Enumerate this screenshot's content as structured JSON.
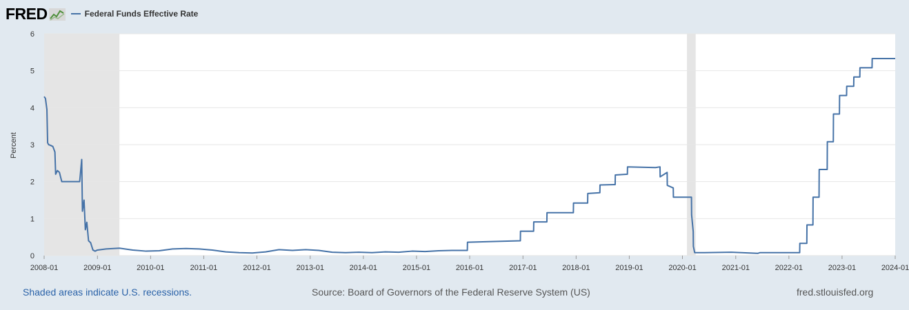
{
  "header": {
    "logo_text": "FRED",
    "logo_icon": "fred-chart-icon",
    "legend_label": "Federal Funds Effective Rate",
    "legend_color": "#4572a7"
  },
  "footer": {
    "recession_note": "Shaded areas indicate U.S. recessions.",
    "source": "Source: Board of Governors of the Federal Reserve System (US)",
    "site": "fred.stlouisfed.org"
  },
  "chart_data": {
    "type": "line",
    "title": "",
    "xlabel": "",
    "ylabel": "Percent",
    "ylim": [
      0,
      6
    ],
    "yticks": [
      "0",
      "1",
      "2",
      "3",
      "4",
      "5",
      "6"
    ],
    "xticks": [
      "2008-01",
      "2009-01",
      "2010-01",
      "2011-01",
      "2012-01",
      "2013-01",
      "2014-01",
      "2015-01",
      "2016-01",
      "2017-01",
      "2018-01",
      "2019-01",
      "2020-01",
      "2021-01",
      "2022-01",
      "2023-01",
      "2024-01"
    ],
    "xlim": [
      "2008-01-01",
      "2024-01-01"
    ],
    "grid": "horizontal",
    "background_color": "#ffffff",
    "recession_color": "#e5e5e5",
    "recessions": [
      {
        "start": "2008-01-01",
        "end": "2009-06-01"
      },
      {
        "start": "2020-02-01",
        "end": "2020-04-01"
      }
    ],
    "series": [
      {
        "name": "Federal Funds Effective Rate",
        "color": "#4572a7",
        "points": [
          [
            "2008-01-01",
            4.3
          ],
          [
            "2008-01-10",
            4.25
          ],
          [
            "2008-01-20",
            3.95
          ],
          [
            "2008-01-25",
            3.05
          ],
          [
            "2008-02-01",
            3.0
          ],
          [
            "2008-02-15",
            2.98
          ],
          [
            "2008-03-01",
            2.95
          ],
          [
            "2008-03-15",
            2.8
          ],
          [
            "2008-03-20",
            2.2
          ],
          [
            "2008-04-01",
            2.3
          ],
          [
            "2008-04-15",
            2.25
          ],
          [
            "2008-05-01",
            2.0
          ],
          [
            "2008-06-01",
            2.0
          ],
          [
            "2008-07-01",
            2.0
          ],
          [
            "2008-08-01",
            2.0
          ],
          [
            "2008-09-01",
            2.0
          ],
          [
            "2008-09-15",
            2.6
          ],
          [
            "2008-09-20",
            1.2
          ],
          [
            "2008-10-01",
            1.5
          ],
          [
            "2008-10-10",
            0.7
          ],
          [
            "2008-10-20",
            0.9
          ],
          [
            "2008-11-01",
            0.4
          ],
          [
            "2008-11-15",
            0.35
          ],
          [
            "2008-12-01",
            0.15
          ],
          [
            "2008-12-16",
            0.12
          ],
          [
            "2009-01-01",
            0.15
          ],
          [
            "2009-03-01",
            0.18
          ],
          [
            "2009-06-01",
            0.2
          ],
          [
            "2009-09-01",
            0.15
          ],
          [
            "2009-12-01",
            0.12
          ],
          [
            "2010-03-01",
            0.13
          ],
          [
            "2010-06-01",
            0.18
          ],
          [
            "2010-09-01",
            0.19
          ],
          [
            "2010-12-01",
            0.18
          ],
          [
            "2011-03-01",
            0.15
          ],
          [
            "2011-06-01",
            0.1
          ],
          [
            "2011-09-01",
            0.08
          ],
          [
            "2011-12-01",
            0.07
          ],
          [
            "2012-03-01",
            0.1
          ],
          [
            "2012-06-01",
            0.16
          ],
          [
            "2012-09-01",
            0.14
          ],
          [
            "2012-12-01",
            0.16
          ],
          [
            "2013-03-01",
            0.14
          ],
          [
            "2013-06-01",
            0.09
          ],
          [
            "2013-09-01",
            0.08
          ],
          [
            "2013-12-01",
            0.09
          ],
          [
            "2014-03-01",
            0.08
          ],
          [
            "2014-06-01",
            0.1
          ],
          [
            "2014-09-01",
            0.09
          ],
          [
            "2014-12-01",
            0.12
          ],
          [
            "2015-03-01",
            0.11
          ],
          [
            "2015-06-01",
            0.13
          ],
          [
            "2015-09-01",
            0.14
          ],
          [
            "2015-12-16",
            0.14
          ],
          [
            "2015-12-17",
            0.36
          ],
          [
            "2016-06-01",
            0.38
          ],
          [
            "2016-12-14",
            0.4
          ],
          [
            "2016-12-15",
            0.66
          ],
          [
            "2017-03-15",
            0.66
          ],
          [
            "2017-03-16",
            0.91
          ],
          [
            "2017-06-14",
            0.91
          ],
          [
            "2017-06-15",
            1.16
          ],
          [
            "2017-12-13",
            1.16
          ],
          [
            "2017-12-14",
            1.42
          ],
          [
            "2018-03-21",
            1.42
          ],
          [
            "2018-03-22",
            1.68
          ],
          [
            "2018-06-13",
            1.7
          ],
          [
            "2018-06-14",
            1.91
          ],
          [
            "2018-09-26",
            1.92
          ],
          [
            "2018-09-27",
            2.18
          ],
          [
            "2018-12-19",
            2.2
          ],
          [
            "2018-12-20",
            2.4
          ],
          [
            "2019-06-30",
            2.38
          ],
          [
            "2019-07-31",
            2.4
          ],
          [
            "2019-08-01",
            2.13
          ],
          [
            "2019-09-18",
            2.25
          ],
          [
            "2019-09-19",
            1.9
          ],
          [
            "2019-10-30",
            1.83
          ],
          [
            "2019-10-31",
            1.58
          ],
          [
            "2020-03-03",
            1.58
          ],
          [
            "2020-03-04",
            1.1
          ],
          [
            "2020-03-15",
            0.65
          ],
          [
            "2020-03-16",
            0.25
          ],
          [
            "2020-03-25",
            0.08
          ],
          [
            "2020-06-01",
            0.08
          ],
          [
            "2020-12-01",
            0.09
          ],
          [
            "2021-06-01",
            0.06
          ],
          [
            "2021-06-17",
            0.08
          ],
          [
            "2021-12-01",
            0.08
          ],
          [
            "2022-03-16",
            0.08
          ],
          [
            "2022-03-17",
            0.33
          ],
          [
            "2022-05-04",
            0.33
          ],
          [
            "2022-05-05",
            0.83
          ],
          [
            "2022-06-15",
            0.83
          ],
          [
            "2022-06-16",
            1.58
          ],
          [
            "2022-07-27",
            1.58
          ],
          [
            "2022-07-28",
            2.33
          ],
          [
            "2022-09-21",
            2.33
          ],
          [
            "2022-09-22",
            3.08
          ],
          [
            "2022-11-02",
            3.08
          ],
          [
            "2022-11-03",
            3.83
          ],
          [
            "2022-12-14",
            3.83
          ],
          [
            "2022-12-15",
            4.33
          ],
          [
            "2023-02-01",
            4.33
          ],
          [
            "2023-02-02",
            4.58
          ],
          [
            "2023-03-22",
            4.58
          ],
          [
            "2023-03-23",
            4.83
          ],
          [
            "2023-05-03",
            4.83
          ],
          [
            "2023-05-04",
            5.08
          ],
          [
            "2023-07-26",
            5.08
          ],
          [
            "2023-07-27",
            5.33
          ],
          [
            "2024-01-01",
            5.33
          ]
        ]
      }
    ]
  }
}
